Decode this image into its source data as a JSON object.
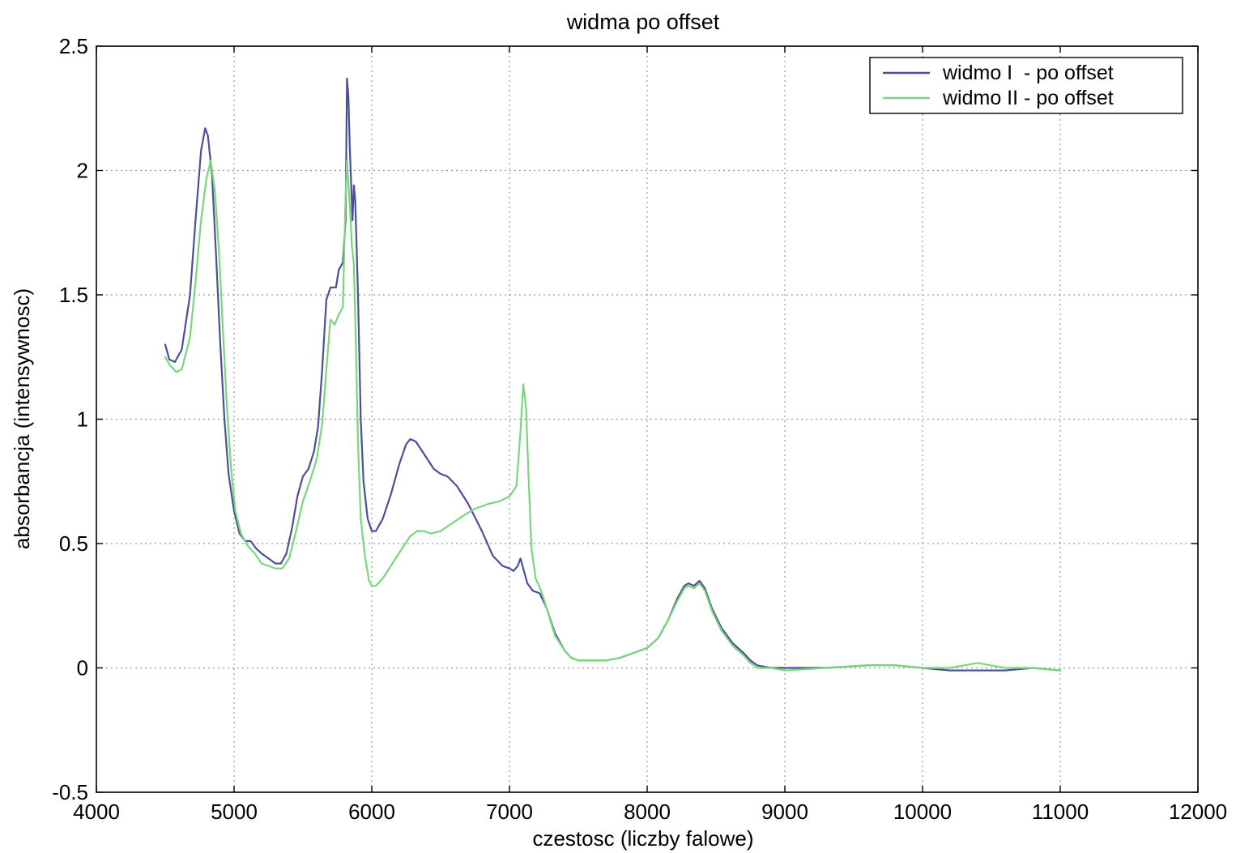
{
  "chart_data": {
    "type": "line",
    "title": "widma po offset",
    "xlabel": "czestosc (liczby falowe)",
    "ylabel": "absorbancja (intensywnosc)",
    "xlim": [
      4000,
      12000
    ],
    "ylim": [
      -0.5,
      2.5
    ],
    "xticks": [
      4000,
      5000,
      6000,
      7000,
      8000,
      9000,
      10000,
      11000,
      12000
    ],
    "xtick_labels": [
      "4000",
      "5000",
      "6000",
      "7000",
      "8000",
      "9000",
      "10000",
      "11000",
      "12000"
    ],
    "yticks": [
      -0.5,
      0,
      0.5,
      1,
      1.5,
      2,
      2.5
    ],
    "ytick_labels": [
      "-0.5",
      "0",
      "0.5",
      "1",
      "1.5",
      "2",
      "2.5"
    ],
    "grid": true,
    "legend_position": "top-right",
    "series": [
      {
        "name": "widmo I  - po offset",
        "color": "#4b4f9a",
        "points": [
          [
            4500,
            1.3
          ],
          [
            4530,
            1.24
          ],
          [
            4570,
            1.23
          ],
          [
            4620,
            1.28
          ],
          [
            4680,
            1.5
          ],
          [
            4720,
            1.8
          ],
          [
            4760,
            2.08
          ],
          [
            4790,
            2.17
          ],
          [
            4810,
            2.14
          ],
          [
            4840,
            1.98
          ],
          [
            4870,
            1.65
          ],
          [
            4900,
            1.3
          ],
          [
            4930,
            1.0
          ],
          [
            4960,
            0.78
          ],
          [
            5000,
            0.63
          ],
          [
            5040,
            0.54
          ],
          [
            5080,
            0.51
          ],
          [
            5120,
            0.51
          ],
          [
            5160,
            0.48
          ],
          [
            5200,
            0.46
          ],
          [
            5250,
            0.44
          ],
          [
            5300,
            0.42
          ],
          [
            5340,
            0.42
          ],
          [
            5380,
            0.46
          ],
          [
            5420,
            0.56
          ],
          [
            5460,
            0.69
          ],
          [
            5500,
            0.77
          ],
          [
            5540,
            0.8
          ],
          [
            5580,
            0.87
          ],
          [
            5610,
            0.97
          ],
          [
            5640,
            1.2
          ],
          [
            5670,
            1.48
          ],
          [
            5700,
            1.53
          ],
          [
            5740,
            1.53
          ],
          [
            5760,
            1.6
          ],
          [
            5790,
            1.63
          ],
          [
            5810,
            1.8
          ],
          [
            5820,
            2.37
          ],
          [
            5830,
            2.3
          ],
          [
            5840,
            2.1
          ],
          [
            5850,
            1.95
          ],
          [
            5860,
            1.8
          ],
          [
            5870,
            1.94
          ],
          [
            5880,
            1.88
          ],
          [
            5900,
            1.5
          ],
          [
            5920,
            1.0
          ],
          [
            5940,
            0.75
          ],
          [
            5970,
            0.6
          ],
          [
            6000,
            0.55
          ],
          [
            6030,
            0.55
          ],
          [
            6080,
            0.6
          ],
          [
            6140,
            0.7
          ],
          [
            6200,
            0.82
          ],
          [
            6250,
            0.9
          ],
          [
            6280,
            0.92
          ],
          [
            6320,
            0.91
          ],
          [
            6380,
            0.86
          ],
          [
            6450,
            0.8
          ],
          [
            6500,
            0.78
          ],
          [
            6550,
            0.77
          ],
          [
            6620,
            0.73
          ],
          [
            6700,
            0.66
          ],
          [
            6800,
            0.55
          ],
          [
            6880,
            0.45
          ],
          [
            6950,
            0.41
          ],
          [
            7000,
            0.4
          ],
          [
            7030,
            0.39
          ],
          [
            7060,
            0.41
          ],
          [
            7080,
            0.44
          ],
          [
            7100,
            0.4
          ],
          [
            7130,
            0.34
          ],
          [
            7170,
            0.31
          ],
          [
            7220,
            0.3
          ],
          [
            7270,
            0.24
          ],
          [
            7330,
            0.14
          ],
          [
            7400,
            0.07
          ],
          [
            7450,
            0.04
          ],
          [
            7500,
            0.03
          ],
          [
            7600,
            0.03
          ],
          [
            7700,
            0.03
          ],
          [
            7800,
            0.04
          ],
          [
            7900,
            0.06
          ],
          [
            8000,
            0.08
          ],
          [
            8080,
            0.12
          ],
          [
            8150,
            0.19
          ],
          [
            8220,
            0.28
          ],
          [
            8270,
            0.33
          ],
          [
            8300,
            0.34
          ],
          [
            8340,
            0.33
          ],
          [
            8380,
            0.35
          ],
          [
            8420,
            0.32
          ],
          [
            8470,
            0.24
          ],
          [
            8540,
            0.16
          ],
          [
            8620,
            0.1
          ],
          [
            8700,
            0.06
          ],
          [
            8750,
            0.03
          ],
          [
            8800,
            0.01
          ],
          [
            8900,
            0.0
          ],
          [
            9000,
            0.0
          ],
          [
            9300,
            0.0
          ],
          [
            9600,
            0.01
          ],
          [
            9800,
            0.01
          ],
          [
            10000,
            0.0
          ],
          [
            10200,
            -0.01
          ],
          [
            10400,
            -0.01
          ],
          [
            10600,
            -0.01
          ],
          [
            10800,
            0.0
          ],
          [
            11000,
            -0.01
          ]
        ]
      },
      {
        "name": "widmo II - po offset",
        "color": "#79d679",
        "points": [
          [
            4500,
            1.25
          ],
          [
            4530,
            1.22
          ],
          [
            4580,
            1.19
          ],
          [
            4620,
            1.2
          ],
          [
            4680,
            1.33
          ],
          [
            4720,
            1.55
          ],
          [
            4760,
            1.8
          ],
          [
            4800,
            1.97
          ],
          [
            4830,
            2.04
          ],
          [
            4860,
            1.92
          ],
          [
            4890,
            1.68
          ],
          [
            4920,
            1.35
          ],
          [
            4950,
            1.03
          ],
          [
            4980,
            0.79
          ],
          [
            5010,
            0.63
          ],
          [
            5050,
            0.54
          ],
          [
            5100,
            0.49
          ],
          [
            5150,
            0.46
          ],
          [
            5200,
            0.42
          ],
          [
            5250,
            0.41
          ],
          [
            5300,
            0.4
          ],
          [
            5350,
            0.4
          ],
          [
            5400,
            0.44
          ],
          [
            5450,
            0.55
          ],
          [
            5500,
            0.67
          ],
          [
            5550,
            0.75
          ],
          [
            5600,
            0.84
          ],
          [
            5640,
            0.98
          ],
          [
            5670,
            1.2
          ],
          [
            5700,
            1.4
          ],
          [
            5730,
            1.38
          ],
          [
            5760,
            1.42
          ],
          [
            5790,
            1.45
          ],
          [
            5810,
            1.9
          ],
          [
            5820,
            2.04
          ],
          [
            5830,
            1.95
          ],
          [
            5845,
            1.82
          ],
          [
            5855,
            1.7
          ],
          [
            5870,
            1.62
          ],
          [
            5885,
            1.3
          ],
          [
            5900,
            0.9
          ],
          [
            5920,
            0.6
          ],
          [
            5950,
            0.45
          ],
          [
            5980,
            0.35
          ],
          [
            6000,
            0.33
          ],
          [
            6030,
            0.33
          ],
          [
            6080,
            0.36
          ],
          [
            6150,
            0.42
          ],
          [
            6220,
            0.48
          ],
          [
            6280,
            0.53
          ],
          [
            6330,
            0.55
          ],
          [
            6380,
            0.55
          ],
          [
            6430,
            0.54
          ],
          [
            6500,
            0.55
          ],
          [
            6580,
            0.58
          ],
          [
            6660,
            0.61
          ],
          [
            6750,
            0.64
          ],
          [
            6850,
            0.66
          ],
          [
            6930,
            0.67
          ],
          [
            7000,
            0.69
          ],
          [
            7050,
            0.73
          ],
          [
            7080,
            0.95
          ],
          [
            7100,
            1.14
          ],
          [
            7120,
            1.05
          ],
          [
            7140,
            0.75
          ],
          [
            7160,
            0.48
          ],
          [
            7190,
            0.36
          ],
          [
            7230,
            0.31
          ],
          [
            7270,
            0.24
          ],
          [
            7330,
            0.13
          ],
          [
            7400,
            0.07
          ],
          [
            7450,
            0.04
          ],
          [
            7500,
            0.03
          ],
          [
            7600,
            0.03
          ],
          [
            7700,
            0.03
          ],
          [
            7800,
            0.04
          ],
          [
            7900,
            0.06
          ],
          [
            8000,
            0.08
          ],
          [
            8080,
            0.12
          ],
          [
            8150,
            0.19
          ],
          [
            8220,
            0.27
          ],
          [
            8270,
            0.32
          ],
          [
            8300,
            0.33
          ],
          [
            8340,
            0.32
          ],
          [
            8380,
            0.34
          ],
          [
            8420,
            0.31
          ],
          [
            8470,
            0.23
          ],
          [
            8540,
            0.15
          ],
          [
            8620,
            0.09
          ],
          [
            8700,
            0.05
          ],
          [
            8750,
            0.02
          ],
          [
            8800,
            0.0
          ],
          [
            8900,
            0.0
          ],
          [
            9000,
            -0.01
          ],
          [
            9300,
            0.0
          ],
          [
            9600,
            0.01
          ],
          [
            9800,
            0.01
          ],
          [
            10000,
            0.0
          ],
          [
            10200,
            0.0
          ],
          [
            10400,
            0.02
          ],
          [
            10600,
            0.0
          ],
          [
            10800,
            0.0
          ],
          [
            11000,
            -0.01
          ]
        ]
      }
    ]
  }
}
